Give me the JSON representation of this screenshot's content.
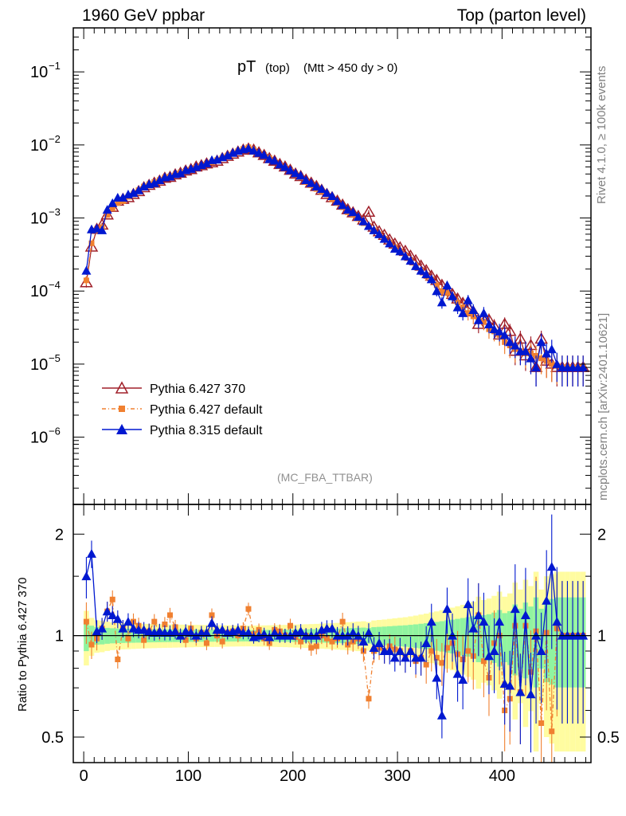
{
  "header": {
    "left": "1960 GeV ppbar",
    "right": "Top (parton level)"
  },
  "side": {
    "rivet": "Rivet 4.1.0, ≥ 100k events",
    "mcplots": "mcplots.cern.ch [arXiv:2401.10621]"
  },
  "colors": {
    "p6_370": "#a0202a",
    "p6_default": "#f08030",
    "p8_default": "#0018d0",
    "band_green": "#90f4a0",
    "band_yellow": "#fffca0"
  },
  "chart_data": [
    {
      "type": "line",
      "panel": "main",
      "title_main": "pT",
      "title_sub": "(top)",
      "title_cut": "(Mtt > 450 dy > 0)",
      "analysis": "(MC_FBA_TTBAR)",
      "yscale": "log",
      "ylim": [
        1.2e-07,
        0.4
      ],
      "xlim": [
        -10,
        485
      ],
      "yticks": [
        {
          "value": 0.1,
          "base": "10",
          "exp": "−1"
        },
        {
          "value": 0.01,
          "base": "10",
          "exp": "−2"
        },
        {
          "value": 0.001,
          "base": "10",
          "exp": "−3"
        },
        {
          "value": 0.0001,
          "base": "10",
          "exp": "−4"
        },
        {
          "value": 1e-05,
          "base": "10",
          "exp": "−5"
        },
        {
          "value": 1e-06,
          "base": "10",
          "exp": "−6"
        }
      ],
      "x": [
        2.5,
        7.5,
        12.5,
        17.5,
        22.5,
        27.5,
        32.5,
        37.5,
        42.5,
        47.5,
        52.5,
        57.5,
        62.5,
        67.5,
        72.5,
        77.5,
        82.5,
        87.5,
        92.5,
        97.5,
        102.5,
        107.5,
        112.5,
        117.5,
        122.5,
        127.5,
        132.5,
        137.5,
        142.5,
        147.5,
        152.5,
        157.5,
        162.5,
        167.5,
        172.5,
        177.5,
        182.5,
        187.5,
        192.5,
        197.5,
        202.5,
        207.5,
        212.5,
        217.5,
        222.5,
        227.5,
        232.5,
        237.5,
        242.5,
        247.5,
        252.5,
        257.5,
        262.5,
        267.5,
        272.5,
        277.5,
        282.5,
        287.5,
        292.5,
        297.5,
        302.5,
        307.5,
        312.5,
        317.5,
        322.5,
        327.5,
        332.5,
        337.5,
        342.5,
        347.5,
        352.5,
        357.5,
        362.5,
        367.5,
        372.5,
        377.5,
        382.5,
        387.5,
        392.5,
        397.5,
        402.5,
        407.5,
        412.5,
        417.5,
        422.5,
        427.5,
        432.5,
        437.5,
        442.5,
        447.5,
        452.5,
        457.5,
        462.5,
        467.5,
        472.5,
        477.5
      ],
      "series": [
        {
          "name": "Pythia 6.427 370",
          "marker": "open-triangle",
          "values": [
            0.00013,
            0.0004,
            0.0007,
            0.0008,
            0.0011,
            0.0014,
            0.0017,
            0.0018,
            0.0019,
            0.0021,
            0.0023,
            0.0026,
            0.0028,
            0.003,
            0.0032,
            0.0035,
            0.0036,
            0.0039,
            0.0041,
            0.0044,
            0.0046,
            0.005,
            0.0052,
            0.0055,
            0.0057,
            0.006,
            0.0065,
            0.007,
            0.0075,
            0.008,
            0.0085,
            0.0088,
            0.0085,
            0.0078,
            0.0072,
            0.0065,
            0.006,
            0.0054,
            0.005,
            0.0045,
            0.004,
            0.0037,
            0.0033,
            0.003,
            0.0027,
            0.0024,
            0.0021,
            0.0019,
            0.0017,
            0.0015,
            0.0013,
            0.00118,
            0.00105,
            0.00094,
            0.0012,
            0.00075,
            0.00065,
            0.00058,
            0.0005,
            0.00044,
            0.00039,
            0.00035,
            0.0003,
            0.00026,
            0.00022,
            0.00019,
            0.00016,
            0.00014,
            0.00012,
            0.0001,
            9e-05,
            7.8e-05,
            6.8e-05,
            6e-05,
            5.2e-05,
            3.5e-05,
            4.5e-05,
            4e-05,
            3.3e-05,
            2.5e-05,
            3.5e-05,
            2.8e-05,
            1.5e-05,
            2.2e-05,
            1.3e-05,
            1.8e-05,
            9e-06,
            2.2e-05,
            1.1e-05,
            1e-05,
            9e-06,
            9e-06,
            9e-06,
            9e-06,
            9e-06,
            9e-06
          ]
        },
        {
          "name": "Pythia 6.427 default",
          "marker": "filled-square",
          "values": [
            0.00014,
            0.00045,
            0.00068,
            0.00075,
            0.0011,
            0.00135,
            0.0016,
            0.0017,
            0.00195,
            0.0021,
            0.0024,
            0.0027,
            0.0029,
            0.0031,
            0.0033,
            0.0036,
            0.0037,
            0.0039,
            0.0042,
            0.0043,
            0.0046,
            0.0049,
            0.0051,
            0.0054,
            0.0058,
            0.0062,
            0.0066,
            0.0071,
            0.0076,
            0.0082,
            0.0088,
            0.0093,
            0.0086,
            0.0077,
            0.0071,
            0.0066,
            0.0059,
            0.0052,
            0.0049,
            0.0044,
            0.0039,
            0.0036,
            0.0031,
            0.0028,
            0.0025,
            0.0023,
            0.0021,
            0.0018,
            0.0016,
            0.0014,
            0.0012,
            0.0011,
            0.00098,
            0.00085,
            0.00078,
            0.00068,
            0.0006,
            0.00052,
            0.00046,
            0.0004,
            0.00035,
            0.0003,
            0.00026,
            0.00022,
            0.00019,
            0.00016,
            0.000145,
            0.00012,
            0.0001,
            9.5e-05,
            8.5e-05,
            7e-05,
            6e-05,
            5e-05,
            4.5e-05,
            4e-05,
            3.8e-05,
            3e-05,
            2.8e-05,
            2.5e-05,
            2e-05,
            1.8e-05,
            1.6e-05,
            1.5e-05,
            1.4e-05,
            1.4e-05,
            1.3e-05,
            1.2e-05,
            1.1e-05,
            1e-05,
            9.5e-06,
            9e-06,
            9e-06,
            9e-06,
            9e-06,
            9e-06
          ]
        },
        {
          "name": "Pythia 8.315 default",
          "marker": "filled-triangle",
          "values": [
            0.00019,
            0.0007,
            0.00072,
            0.00068,
            0.0013,
            0.0016,
            0.0019,
            0.0019,
            0.0021,
            0.0022,
            0.0024,
            0.0027,
            0.0029,
            0.003,
            0.0033,
            0.0036,
            0.0037,
            0.004,
            0.0041,
            0.0045,
            0.0047,
            0.005,
            0.0053,
            0.0056,
            0.0062,
            0.0063,
            0.0068,
            0.0072,
            0.0078,
            0.0083,
            0.0087,
            0.009,
            0.0084,
            0.0078,
            0.0073,
            0.0064,
            0.0061,
            0.0054,
            0.005,
            0.0045,
            0.0041,
            0.0038,
            0.0033,
            0.003,
            0.0027,
            0.0025,
            0.0022,
            0.002,
            0.0017,
            0.0015,
            0.0013,
            0.0012,
            0.00104,
            0.0009,
            0.00078,
            0.00068,
            0.0006,
            0.00052,
            0.00045,
            0.00038,
            0.00035,
            0.0003,
            0.00026,
            0.00022,
            0.00019,
            0.00017,
            0.000145,
            0.0001,
            7e-05,
            0.00012,
            8.5e-05,
            6e-05,
            5e-05,
            7.5e-05,
            5.5e-05,
            4e-05,
            5e-05,
            3.5e-05,
            3e-05,
            2.8e-05,
            2.5e-05,
            2e-05,
            1.8e-05,
            1.5e-05,
            1.5e-05,
            1.2e-05,
            9e-06,
            2e-05,
            1.4e-05,
            1.6e-05,
            1e-05,
            9e-06,
            9e-06,
            9e-06,
            9e-06,
            9e-06
          ]
        }
      ]
    },
    {
      "type": "line",
      "panel": "ratio",
      "ylabel": "Ratio to Pythia 6.427 370",
      "yscale": "log",
      "ylim": [
        0.42,
        2.45
      ],
      "yticks": [
        2,
        1,
        0.5
      ],
      "xlim": [
        -10,
        485
      ],
      "xticks": [
        0,
        100,
        200,
        300,
        400
      ],
      "series": [
        {
          "name": "Pythia 6.427 default",
          "values": [
            1.1,
            0.94,
            0.98,
            1.05,
            1.18,
            1.28,
            0.85,
            1.05,
            0.98,
            1.1,
            1.07,
            0.97,
            1.03,
            1.1,
            1.02,
            1.08,
            1.15,
            1.06,
            1.0,
            0.97,
            1.05,
            0.98,
            1.02,
            0.95,
            1.15,
            1.0,
            0.96,
            1.02,
            1.03,
            1.0,
            1.05,
            1.2,
            1.01,
            1.04,
            0.98,
            0.95,
            1.04,
            1.03,
            1.0,
            1.07,
            0.99,
            0.96,
            1.0,
            0.92,
            0.93,
            1.0,
            0.98,
            0.96,
            0.98,
            1.1,
            0.94,
            0.96,
            0.98,
            0.9,
            0.65,
            0.9,
            0.92,
            0.9,
            0.93,
            0.91,
            0.9,
            0.86,
            0.9,
            0.84,
            0.86,
            0.82,
            0.9,
            0.86,
            0.83,
            0.92,
            0.95,
            0.88,
            0.85,
            0.9,
            0.87,
            1.15,
            0.84,
            0.75,
            0.95,
            1.0,
            0.6,
            0.65,
            1.07,
            0.68,
            1.07,
            0.78,
            1.03,
            0.55,
            1.02,
            0.52,
            1.05,
            1.0,
            1.0,
            1.0,
            1.0,
            1.0
          ]
        },
        {
          "name": "Pythia 8.315 default",
          "values": [
            1.5,
            1.75,
            1.03,
            1.05,
            1.18,
            1.15,
            1.12,
            1.05,
            1.1,
            1.05,
            1.04,
            1.04,
            1.03,
            1.02,
            1.03,
            1.02,
            1.02,
            1.03,
            1.0,
            1.03,
            1.02,
            1.0,
            1.02,
            1.02,
            1.09,
            1.04,
            1.04,
            1.02,
            1.03,
            1.04,
            1.02,
            1.02,
            0.99,
            1.0,
            1.01,
            0.99,
            1.02,
            1.0,
            1.0,
            1.0,
            1.02,
            1.03,
            1.0,
            1.0,
            1.0,
            1.04,
            1.05,
            1.05,
            1.0,
            1.0,
            1.0,
            1.02,
            1.0,
            0.96,
            1.02,
            0.92,
            0.95,
            0.9,
            0.9,
            0.86,
            0.9,
            0.86,
            0.9,
            0.86,
            0.86,
            0.95,
            1.1,
            0.75,
            0.58,
            1.2,
            1.0,
            0.77,
            0.74,
            1.24,
            1.05,
            1.15,
            1.1,
            0.87,
            0.9,
            1.1,
            0.72,
            0.71,
            1.2,
            0.68,
            1.15,
            0.67,
            1.0,
            0.9,
            1.27,
            1.6,
            1.1,
            1.0,
            1.0,
            1.0,
            1.0,
            1.0
          ]
        }
      ]
    }
  ]
}
